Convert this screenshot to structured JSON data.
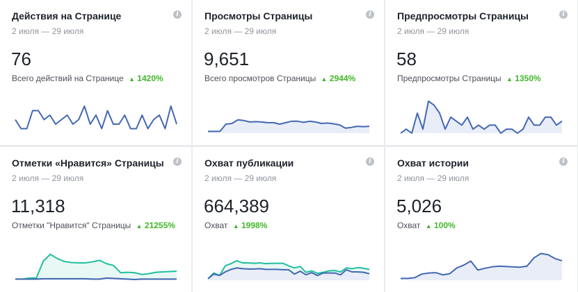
{
  "colors": {
    "primary_line": "#4267b2",
    "primary_fill": "#e9edf7",
    "secondary_line": "#1fbf9f",
    "secondary_fill": "#e6f7f3",
    "positive": "#42b72a"
  },
  "icons": {
    "info": "info-icon",
    "arrow": "up-triangle-icon"
  },
  "info_glyph": "i",
  "arrow_glyph": "▲",
  "cards": [
    {
      "title": "Действия на Странице",
      "date_range": "2 июля — 29 июля",
      "value": "76",
      "subtitle": "Всего действий на Странице",
      "change": "1420%",
      "chart_data": {
        "type": "line",
        "series": [
          {
            "values": [
              3,
              1,
              1,
              5,
              5,
              3,
              4,
              2,
              3,
              4,
              2,
              3,
              6,
              2,
              4,
              1,
              5,
              2,
              2,
              4,
              1,
              1,
              4,
              1,
              3,
              4,
              1,
              6,
              2
            ]
          }
        ],
        "ylim": [
          0,
          8
        ]
      }
    },
    {
      "title": "Просмотры Страницы",
      "date_range": "2 июля — 29 июля",
      "value": "9,651",
      "subtitle": "Всего просмотров Страницы",
      "change": "2944%",
      "chart_data": {
        "type": "area",
        "series": [
          {
            "values": [
              5,
              5,
              5,
              25,
              27,
              37,
              35,
              31,
              32,
              31,
              29,
              29,
              25,
              29,
              33,
              33,
              30,
              33,
              31,
              27,
              28,
              26,
              23,
              14,
              16,
              19,
              18,
              19
            ]
          }
        ],
        "ylim": [
          0,
          100
        ]
      }
    },
    {
      "title": "Предпросмотры Страницы",
      "date_range": "2 июля — 29 июля",
      "value": "58",
      "subtitle": "Предпросмотры Страницы",
      "change": "1350%",
      "chart_data": {
        "type": "area",
        "series": [
          {
            "values": [
              0,
              1,
              0,
              5,
              1,
              8,
              7,
              5,
              1,
              4,
              3,
              2,
              4,
              1,
              2,
              1,
              2,
              2,
              0,
              1,
              1,
              0,
              1,
              4,
              2,
              2,
              4,
              4,
              2,
              3
            ]
          }
        ],
        "ylim": [
          0,
          9
        ]
      }
    },
    {
      "title": "Отметки «Нравится» Страницы",
      "date_range": "2 июля — 29 июля",
      "value": "11,318",
      "subtitle": "Отметки \"Нравится\" Страницы",
      "change": "21255%",
      "chart_data": {
        "type": "area",
        "series": [
          {
            "values": [
              3,
              3,
              6,
              6,
              53,
              72,
              60,
              52,
              49,
              48,
              48,
              51,
              55,
              46,
              41,
              21,
              22,
              21,
              16,
              18,
              22,
              23,
              24,
              25
            ]
          },
          {
            "values": [
              3,
              3,
              3,
              3,
              4,
              4,
              4,
              4,
              4,
              4,
              4,
              3,
              3,
              6,
              5,
              4,
              3,
              2,
              3,
              3,
              3,
              3,
              3,
              3
            ]
          }
        ],
        "ylim": [
          0,
          100
        ]
      }
    },
    {
      "title": "Охват публикации",
      "date_range": "2 июля — 29 июля",
      "value": "664,389",
      "subtitle": "Охват",
      "change": "1998%",
      "chart_data": {
        "type": "area",
        "series": [
          {
            "values": [
              4,
              20,
              13,
              40,
              46,
              54,
              48,
              48,
              47,
              48,
              46,
              47,
              47,
              47,
              40,
              34,
              38,
              22,
              26,
              19,
              22,
              26,
              27,
              23,
              34,
              32,
              35,
              33,
              30
            ]
          },
          {
            "values": [
              4,
              17,
              13,
              23,
              30,
              34,
              32,
              31,
              31,
              32,
              30,
              30,
              30,
              29,
              29,
              17,
              25,
              15,
              21,
              13,
              20,
              20,
              20,
              15,
              29,
              23,
              23,
              22,
              18
            ]
          }
        ],
        "ylim": [
          0,
          100
        ]
      }
    },
    {
      "title": "Охват истории",
      "date_range": "2 июля — 29 июля",
      "value": "5,026",
      "subtitle": "Охват",
      "change": "100%",
      "chart_data": {
        "type": "area",
        "series": [
          {
            "values": [
              5,
              5,
              7,
              17,
              20,
              21,
              15,
              18,
              34,
              42,
              53,
              28,
              33,
              37,
              39,
              38,
              37,
              36,
              39,
              62,
              74,
              71,
              60,
              54
            ]
          }
        ],
        "ylim": [
          0,
          100
        ]
      }
    }
  ]
}
